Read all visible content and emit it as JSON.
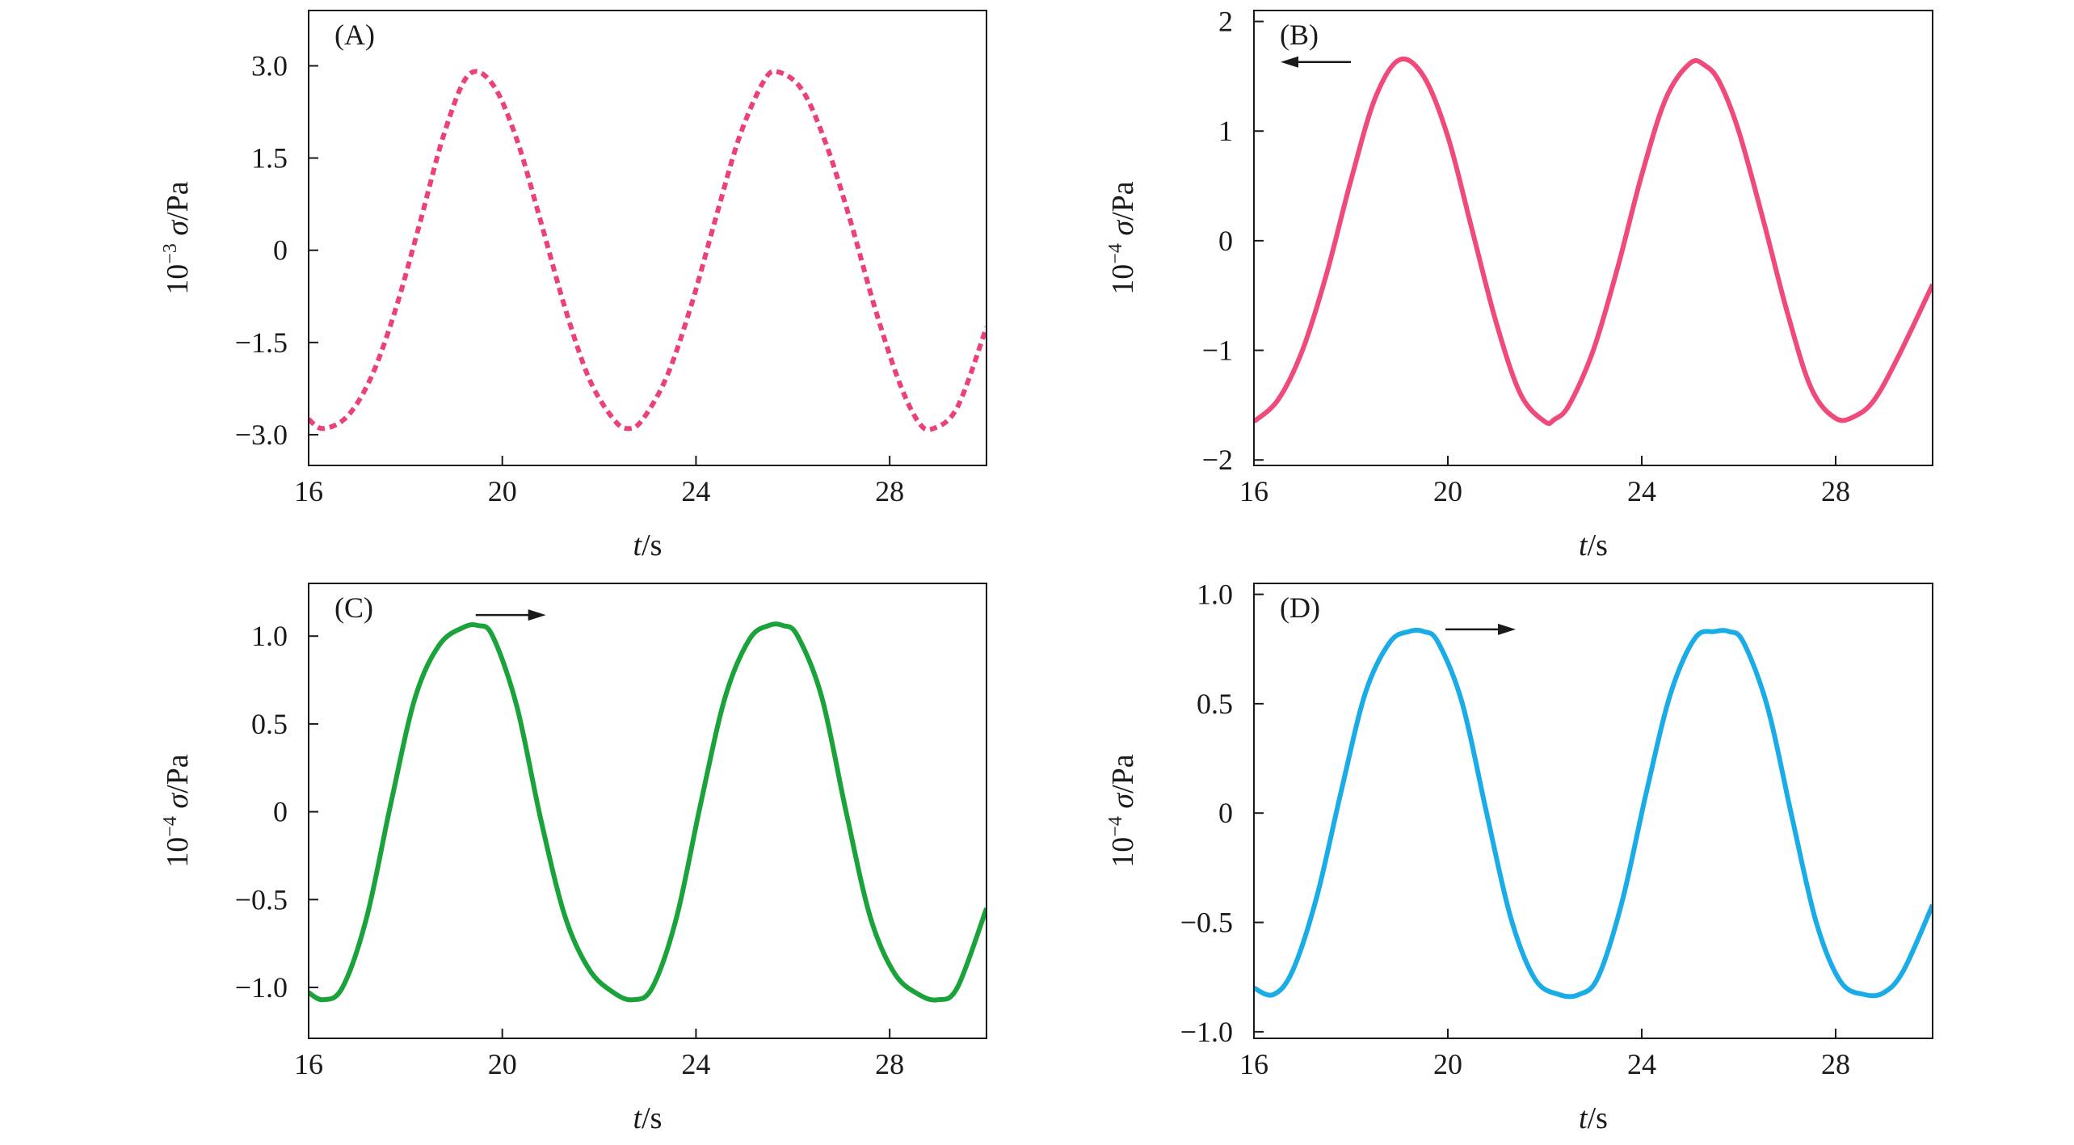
{
  "chart_data": [
    {
      "type": "line",
      "panel_label": "(A)",
      "xlabel_var": "t",
      "xlabel_unit": "/s",
      "ylabel_prefix": "10",
      "ylabel_exp": "−3",
      "ylabel_var": "σ",
      "ylabel_unit": "/Pa",
      "xlim": [
        16,
        30
      ],
      "ylim": [
        -3.5,
        3.9
      ],
      "xticks": [
        16,
        20,
        24,
        28
      ],
      "xtick_labels": [
        "16",
        "20",
        "24",
        "28"
      ],
      "yticks": [
        -3.0,
        -1.5,
        0,
        1.5,
        3.0
      ],
      "ytick_labels": [
        "−3.0",
        "−1.5",
        "0",
        "1.5",
        "3.0"
      ],
      "line_style": "dashed",
      "color": "#ec407a",
      "arrow": null,
      "series": [
        {
          "x": [
            16.0,
            16.3,
            16.8,
            17.3,
            17.8,
            18.3,
            18.8,
            19.3,
            19.8,
            20.3,
            20.8,
            21.3,
            21.8,
            22.3,
            22.6,
            22.9,
            23.4,
            23.9,
            24.4,
            24.9,
            25.4,
            25.7,
            26.2,
            26.7,
            27.2,
            27.7,
            28.2,
            28.6,
            28.9,
            29.4,
            30.0
          ],
          "y": [
            -2.75,
            -2.9,
            -2.7,
            -2.05,
            -0.95,
            0.45,
            1.9,
            2.85,
            2.7,
            1.8,
            0.45,
            -0.95,
            -2.1,
            -2.75,
            -2.9,
            -2.75,
            -2.05,
            -0.9,
            0.5,
            1.85,
            2.75,
            2.9,
            2.6,
            1.7,
            0.45,
            -0.95,
            -2.15,
            -2.8,
            -2.9,
            -2.55,
            -1.25
          ]
        }
      ]
    },
    {
      "type": "line",
      "panel_label": "(B)",
      "xlabel_var": "t",
      "xlabel_unit": "/s",
      "ylabel_prefix": "10",
      "ylabel_exp": "−4",
      "ylabel_var": "σ",
      "ylabel_unit": "/Pa",
      "xlim": [
        16,
        30
      ],
      "ylim": [
        -2.05,
        2.1
      ],
      "xticks": [
        16,
        20,
        24,
        28
      ],
      "xtick_labels": [
        "16",
        "20",
        "24",
        "28"
      ],
      "yticks": [
        -2,
        -1,
        0,
        1,
        2
      ],
      "ytick_labels": [
        "−2",
        "−1",
        "0",
        "1",
        "2"
      ],
      "line_style": "solid",
      "color": "#ef4a7a",
      "arrow": {
        "direction": "left",
        "x_from": 18.0,
        "x_to": 16.55,
        "y": 1.63
      },
      "series": [
        {
          "x": [
            16.0,
            16.5,
            17.0,
            17.5,
            18.0,
            18.5,
            19.0,
            19.5,
            20.0,
            20.5,
            21.0,
            21.5,
            22.0,
            22.2,
            22.5,
            23.0,
            23.5,
            24.0,
            24.5,
            25.0,
            25.3,
            25.6,
            26.0,
            26.5,
            27.0,
            27.5,
            28.0,
            28.4,
            28.8,
            29.3,
            30.0
          ],
          "y": [
            -1.65,
            -1.45,
            -1.0,
            -0.3,
            0.55,
            1.3,
            1.65,
            1.5,
            0.95,
            0.1,
            -0.75,
            -1.4,
            -1.65,
            -1.63,
            -1.5,
            -1.0,
            -0.25,
            0.6,
            1.3,
            1.62,
            1.6,
            1.45,
            1.0,
            0.2,
            -0.65,
            -1.35,
            -1.62,
            -1.6,
            -1.45,
            -1.05,
            -0.4
          ]
        }
      ]
    },
    {
      "type": "line",
      "panel_label": "(C)",
      "xlabel_var": "t",
      "xlabel_unit": "/s",
      "ylabel_prefix": "10",
      "ylabel_exp": "−4",
      "ylabel_var": "σ",
      "ylabel_unit": "/Pa",
      "xlim": [
        16,
        30
      ],
      "ylim": [
        -1.29,
        1.3
      ],
      "xticks": [
        16,
        20,
        24,
        28
      ],
      "xtick_labels": [
        "16",
        "20",
        "24",
        "28"
      ],
      "yticks": [
        -1.0,
        -0.5,
        0,
        0.5,
        1.0
      ],
      "ytick_labels": [
        "−1.0",
        "−0.5",
        "0",
        "0.5",
        "1.0"
      ],
      "line_style": "solid",
      "color": "#1aa33a",
      "arrow": {
        "direction": "right",
        "x_from": 19.45,
        "x_to": 20.9,
        "y": 1.12
      },
      "series": [
        {
          "x": [
            16.0,
            16.3,
            16.7,
            17.2,
            17.7,
            18.2,
            18.7,
            19.2,
            19.5,
            19.8,
            20.3,
            20.8,
            21.3,
            21.8,
            22.3,
            22.7,
            23.1,
            23.6,
            24.1,
            24.6,
            25.1,
            25.5,
            25.8,
            26.1,
            26.6,
            27.1,
            27.6,
            28.1,
            28.6,
            29.0,
            29.4,
            30.0
          ],
          "y": [
            -1.03,
            -1.07,
            -1.0,
            -0.6,
            0.05,
            0.65,
            0.95,
            1.05,
            1.06,
            1.0,
            0.6,
            -0.05,
            -0.6,
            -0.9,
            -1.03,
            -1.07,
            -1.0,
            -0.6,
            0.05,
            0.65,
            0.98,
            1.06,
            1.06,
            1.0,
            0.65,
            0.0,
            -0.6,
            -0.92,
            -1.04,
            -1.07,
            -1.0,
            -0.55
          ]
        }
      ]
    },
    {
      "type": "line",
      "panel_label": "(D)",
      "xlabel_var": "t",
      "xlabel_unit": "/s",
      "ylabel_prefix": "10",
      "ylabel_exp": "−4",
      "ylabel_var": "σ",
      "ylabel_unit": "/Pa",
      "xlim": [
        16,
        30
      ],
      "ylim": [
        -1.03,
        1.05
      ],
      "xticks": [
        16,
        20,
        24,
        28
      ],
      "xtick_labels": [
        "16",
        "20",
        "24",
        "28"
      ],
      "yticks": [
        -1.0,
        -0.5,
        0,
        0.5,
        1.0
      ],
      "ytick_labels": [
        "−1.0",
        "−0.5",
        "0",
        "0.5",
        "1.0"
      ],
      "line_style": "solid",
      "color": "#19ace6",
      "arrow": {
        "direction": "right",
        "x_from": 19.95,
        "x_to": 21.4,
        "y": 0.84
      },
      "series": [
        {
          "x": [
            16.0,
            16.4,
            16.8,
            17.3,
            17.8,
            18.3,
            18.8,
            19.2,
            19.5,
            19.8,
            20.3,
            20.8,
            21.3,
            21.8,
            22.3,
            22.7,
            23.1,
            23.6,
            24.1,
            24.6,
            25.1,
            25.5,
            25.8,
            26.1,
            26.6,
            27.1,
            27.6,
            28.1,
            28.6,
            29.0,
            29.4,
            30.0
          ],
          "y": [
            -0.8,
            -0.83,
            -0.72,
            -0.38,
            0.1,
            0.55,
            0.78,
            0.83,
            0.83,
            0.78,
            0.5,
            0.0,
            -0.48,
            -0.76,
            -0.83,
            -0.83,
            -0.75,
            -0.4,
            0.1,
            0.55,
            0.8,
            0.83,
            0.83,
            0.78,
            0.48,
            -0.02,
            -0.5,
            -0.77,
            -0.83,
            -0.82,
            -0.72,
            -0.42
          ]
        }
      ]
    }
  ]
}
